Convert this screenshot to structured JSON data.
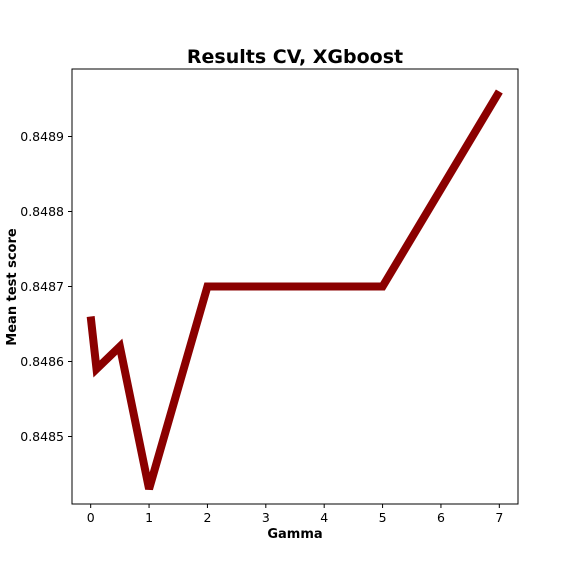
{
  "chart_data": {
    "type": "line",
    "title": "Results CV, XGboost",
    "xlabel": "Gamma",
    "ylabel": "Mean test score",
    "x": [
      0,
      0.1,
      0.5,
      1,
      2,
      5,
      7
    ],
    "series": [
      {
        "values": [
          0.84866,
          0.84859,
          0.84862,
          0.84843,
          0.8487,
          0.8487,
          0.84896
        ],
        "color": "#8b0000"
      }
    ],
    "xlim": [
      -0.32,
      7.32
    ],
    "ylim": [
      0.84841,
      0.84899
    ],
    "x_ticks": [
      0,
      1,
      2,
      3,
      4,
      5,
      6,
      7
    ],
    "x_tick_labels": [
      "0",
      "1",
      "2",
      "3",
      "4",
      "5",
      "6",
      "7"
    ],
    "y_ticks": [
      0.8485,
      0.8486,
      0.8487,
      0.8488,
      0.8489
    ],
    "y_tick_labels": [
      "0.8485",
      "0.8486",
      "0.8487",
      "0.8488",
      "0.8489"
    ],
    "grid": false,
    "legend": "none"
  }
}
